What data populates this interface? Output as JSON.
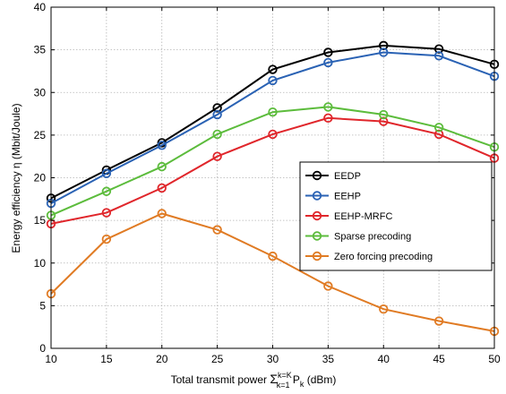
{
  "chart_data": {
    "type": "line",
    "x": [
      10,
      15,
      20,
      25,
      30,
      35,
      40,
      45,
      50
    ],
    "xlim": [
      10,
      50
    ],
    "ylim": [
      0,
      40
    ],
    "xticks": [
      "10",
      "15",
      "20",
      "25",
      "30",
      "35",
      "40",
      "45",
      "50"
    ],
    "yticks": [
      "0",
      "5",
      "10",
      "15",
      "20",
      "25",
      "30",
      "35",
      "40"
    ],
    "xlabel": {
      "prefix": "Total transmit power ",
      "sigma": "Σ",
      "sup": "k=K",
      "sub": "k=1",
      "var": " P",
      "var_sub": "k",
      "suffix": " (dBm)"
    },
    "ylabel": "Energy efficiency η (Mbit/Joule)",
    "grid": true,
    "legend_position": "right-middle",
    "marker": "open-circle",
    "series": [
      {
        "name": "EEDP",
        "color": "#000000",
        "values": [
          17.6,
          20.9,
          24.1,
          28.2,
          32.7,
          34.7,
          35.5,
          35.1,
          33.3
        ]
      },
      {
        "name": "EEHP",
        "color": "#2a62b4",
        "values": [
          17.0,
          20.5,
          23.8,
          27.4,
          31.4,
          33.5,
          34.7,
          34.3,
          31.9
        ]
      },
      {
        "name": "EEHP-MRFC",
        "color": "#e0262b",
        "values": [
          14.6,
          15.9,
          18.8,
          22.5,
          25.1,
          27.0,
          26.6,
          25.1,
          22.3
        ]
      },
      {
        "name": "Sparse precoding",
        "color": "#5cbc3c",
        "values": [
          15.6,
          18.4,
          21.3,
          25.1,
          27.7,
          28.3,
          27.4,
          25.9,
          23.6
        ]
      },
      {
        "name": "Zero forcing precoding",
        "color": "#e07b24",
        "values": [
          6.4,
          12.8,
          15.8,
          13.9,
          10.8,
          7.3,
          4.6,
          3.2,
          2.0
        ]
      }
    ]
  }
}
